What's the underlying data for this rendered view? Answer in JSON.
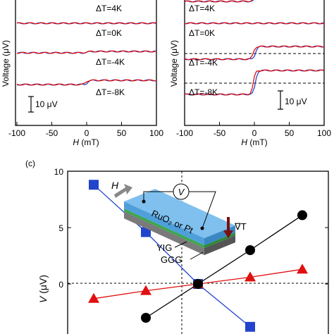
{
  "panel_a": {
    "ylabel": "Voltage (μV)",
    "xlabel_italic": "H",
    "xlabel_unit": " (mT)",
    "xticks": [
      "-100",
      "-50",
      "0",
      "50",
      "100"
    ],
    "traces": [
      {
        "label": "ΔT=4K",
        "step": 0
      },
      {
        "label": "ΔT=0K",
        "step": 0
      },
      {
        "label": "ΔT=-4K",
        "step": 1
      },
      {
        "label": "ΔT=-8K",
        "step": 3
      }
    ],
    "scalebar": "10 μV"
  },
  "panel_b": {
    "ylabel": "Voltage (μV)",
    "xlabel_italic": "H",
    "xlabel_unit": " (mT)",
    "xticks": [
      "-100",
      "-50",
      "0",
      "50",
      "100"
    ],
    "traces": [
      {
        "label": "ΔT=4K",
        "step": 4
      },
      {
        "label": "ΔT=0K",
        "step": 0
      },
      {
        "label": "ΔT=-4K",
        "step": 9
      },
      {
        "label": "ΔT=-8K",
        "step": 17
      }
    ],
    "scalebar": "10 μV"
  },
  "panel_c": {
    "label": "(c)",
    "ylabel_italic": "V",
    "ylabel_unit": " (μV)",
    "yticks": [
      "10",
      "5",
      "0",
      "-5"
    ],
    "inset": {
      "h": "H",
      "v": "V",
      "film": "RuO₂ or Pt",
      "grad": "∇T",
      "yig": "YIG",
      "ggg": "GGG"
    }
  },
  "chart_data": [
    {
      "type": "line",
      "panel": "a",
      "xlabel": "H (mT)",
      "ylabel": "Voltage (μV)",
      "xlim": [
        -100,
        100
      ],
      "series": [
        {
          "name": "ΔT=4K",
          "x": [
            -100,
            0,
            100
          ],
          "y": [
            0,
            0,
            0
          ]
        },
        {
          "name": "ΔT=0K",
          "x": [
            -100,
            0,
            100
          ],
          "y": [
            0,
            0,
            0
          ]
        },
        {
          "name": "ΔT=-4K",
          "x": [
            -100,
            0,
            100
          ],
          "y": [
            0.5,
            0,
            -0.5
          ]
        },
        {
          "name": "ΔT=-8K",
          "x": [
            -100,
            0,
            100
          ],
          "y": [
            1.5,
            0,
            -1.5
          ]
        }
      ]
    },
    {
      "type": "line",
      "panel": "b",
      "xlabel": "H (mT)",
      "ylabel": "Voltage (μV)",
      "xlim": [
        -100,
        100
      ],
      "series": [
        {
          "name": "ΔT=4K",
          "x": [
            -100,
            0,
            100
          ],
          "y": [
            -2,
            0,
            2
          ]
        },
        {
          "name": "ΔT=0K",
          "x": [
            -100,
            0,
            100
          ],
          "y": [
            0,
            0,
            0
          ]
        },
        {
          "name": "ΔT=-4K",
          "x": [
            -100,
            0,
            100
          ],
          "y": [
            -4.5,
            0,
            4.5
          ]
        },
        {
          "name": "ΔT=-8K",
          "x": [
            -100,
            0,
            100
          ],
          "y": [
            -8.5,
            0,
            8.5
          ]
        }
      ]
    },
    {
      "type": "scatter",
      "panel": "c",
      "ylabel": "V (μV)",
      "ylim": [
        -5,
        10
      ],
      "xlim": [
        -10,
        10
      ],
      "series": [
        {
          "color": "#2244cc",
          "marker": "square",
          "x": [
            -8,
            -4,
            0,
            4
          ],
          "y": [
            8.8,
            4.6,
            0,
            -3.8
          ]
        },
        {
          "color": "#e01010",
          "marker": "triangle",
          "x": [
            -8,
            -4,
            0,
            4,
            8
          ],
          "y": [
            -1.3,
            -0.6,
            0,
            0.6,
            1.3
          ]
        },
        {
          "color": "#000000",
          "marker": "circle",
          "x": [
            -4,
            0,
            4,
            8
          ],
          "y": [
            -3.0,
            0,
            3.0,
            6.1
          ]
        }
      ]
    }
  ]
}
